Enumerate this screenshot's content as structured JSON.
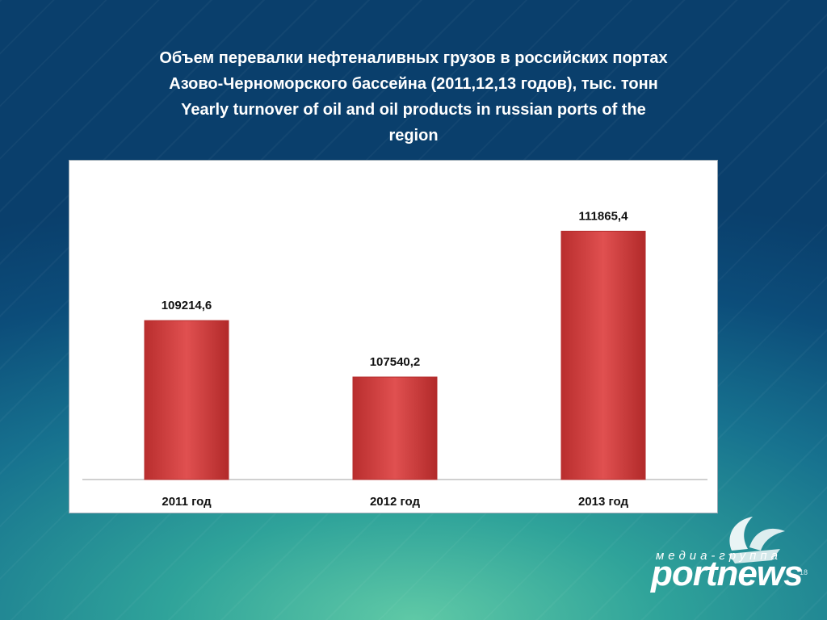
{
  "slide": {
    "title_ru_line1": "Объем перевалки нефтеналивных грузов в российских портах",
    "title_ru_line2": "Азово-Черноморского бассейна (2011,12,13 годов), тыс. тонн",
    "title_en_line1": "Yearly turnover of oil and oil products in russian ports of the",
    "title_en_line2": "region",
    "page_number": "18"
  },
  "logo": {
    "subtitle": "медиа-группа",
    "name": "portnews"
  },
  "colors": {
    "bar": "#d64545",
    "bar_dark": "#b52d2d",
    "background": "#0c4d7a"
  },
  "chart_data": {
    "type": "bar",
    "categories": [
      "2011 год",
      "2012 год",
      "2013 год"
    ],
    "values": [
      109214.6,
      107540.2,
      111865.4
    ],
    "value_labels": [
      "109214,6",
      "107540,2",
      "111865,4"
    ],
    "ylim": [
      104500,
      113000
    ],
    "grid": false,
    "legend": "none"
  }
}
